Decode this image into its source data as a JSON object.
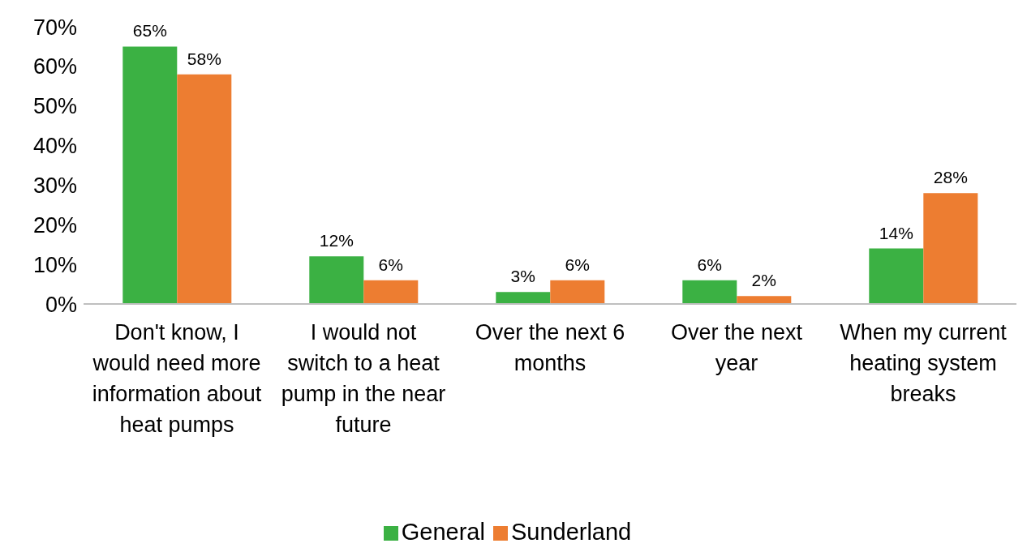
{
  "chart_data": {
    "type": "bar",
    "categories": [
      "Don't know, I would need more information about heat pumps",
      "I would not switch to a heat pump in the near future",
      "Over the next 6 months",
      "Over the next year",
      "When my current heating system breaks"
    ],
    "series": [
      {
        "name": "General",
        "color": "#3bb143",
        "values": [
          65,
          12,
          3,
          6,
          14
        ],
        "value_labels": [
          "65%",
          "12%",
          "3%",
          "6%",
          "14%"
        ]
      },
      {
        "name": "Sunderland",
        "color": "#ed7d31",
        "values": [
          58,
          6,
          6,
          2,
          28
        ],
        "value_labels": [
          "58%",
          "6%",
          "6%",
          "2%",
          "28%"
        ]
      }
    ],
    "ylim": [
      0,
      70
    ],
    "yticks": [
      {
        "value": 0,
        "label": "0%"
      },
      {
        "value": 10,
        "label": "10%"
      },
      {
        "value": 20,
        "label": "20%"
      },
      {
        "value": 30,
        "label": "30%"
      },
      {
        "value": 40,
        "label": "40%"
      },
      {
        "value": 50,
        "label": "50%"
      },
      {
        "value": 60,
        "label": "60%"
      },
      {
        "value": 70,
        "label": "70%"
      }
    ],
    "legend": "bottom"
  }
}
